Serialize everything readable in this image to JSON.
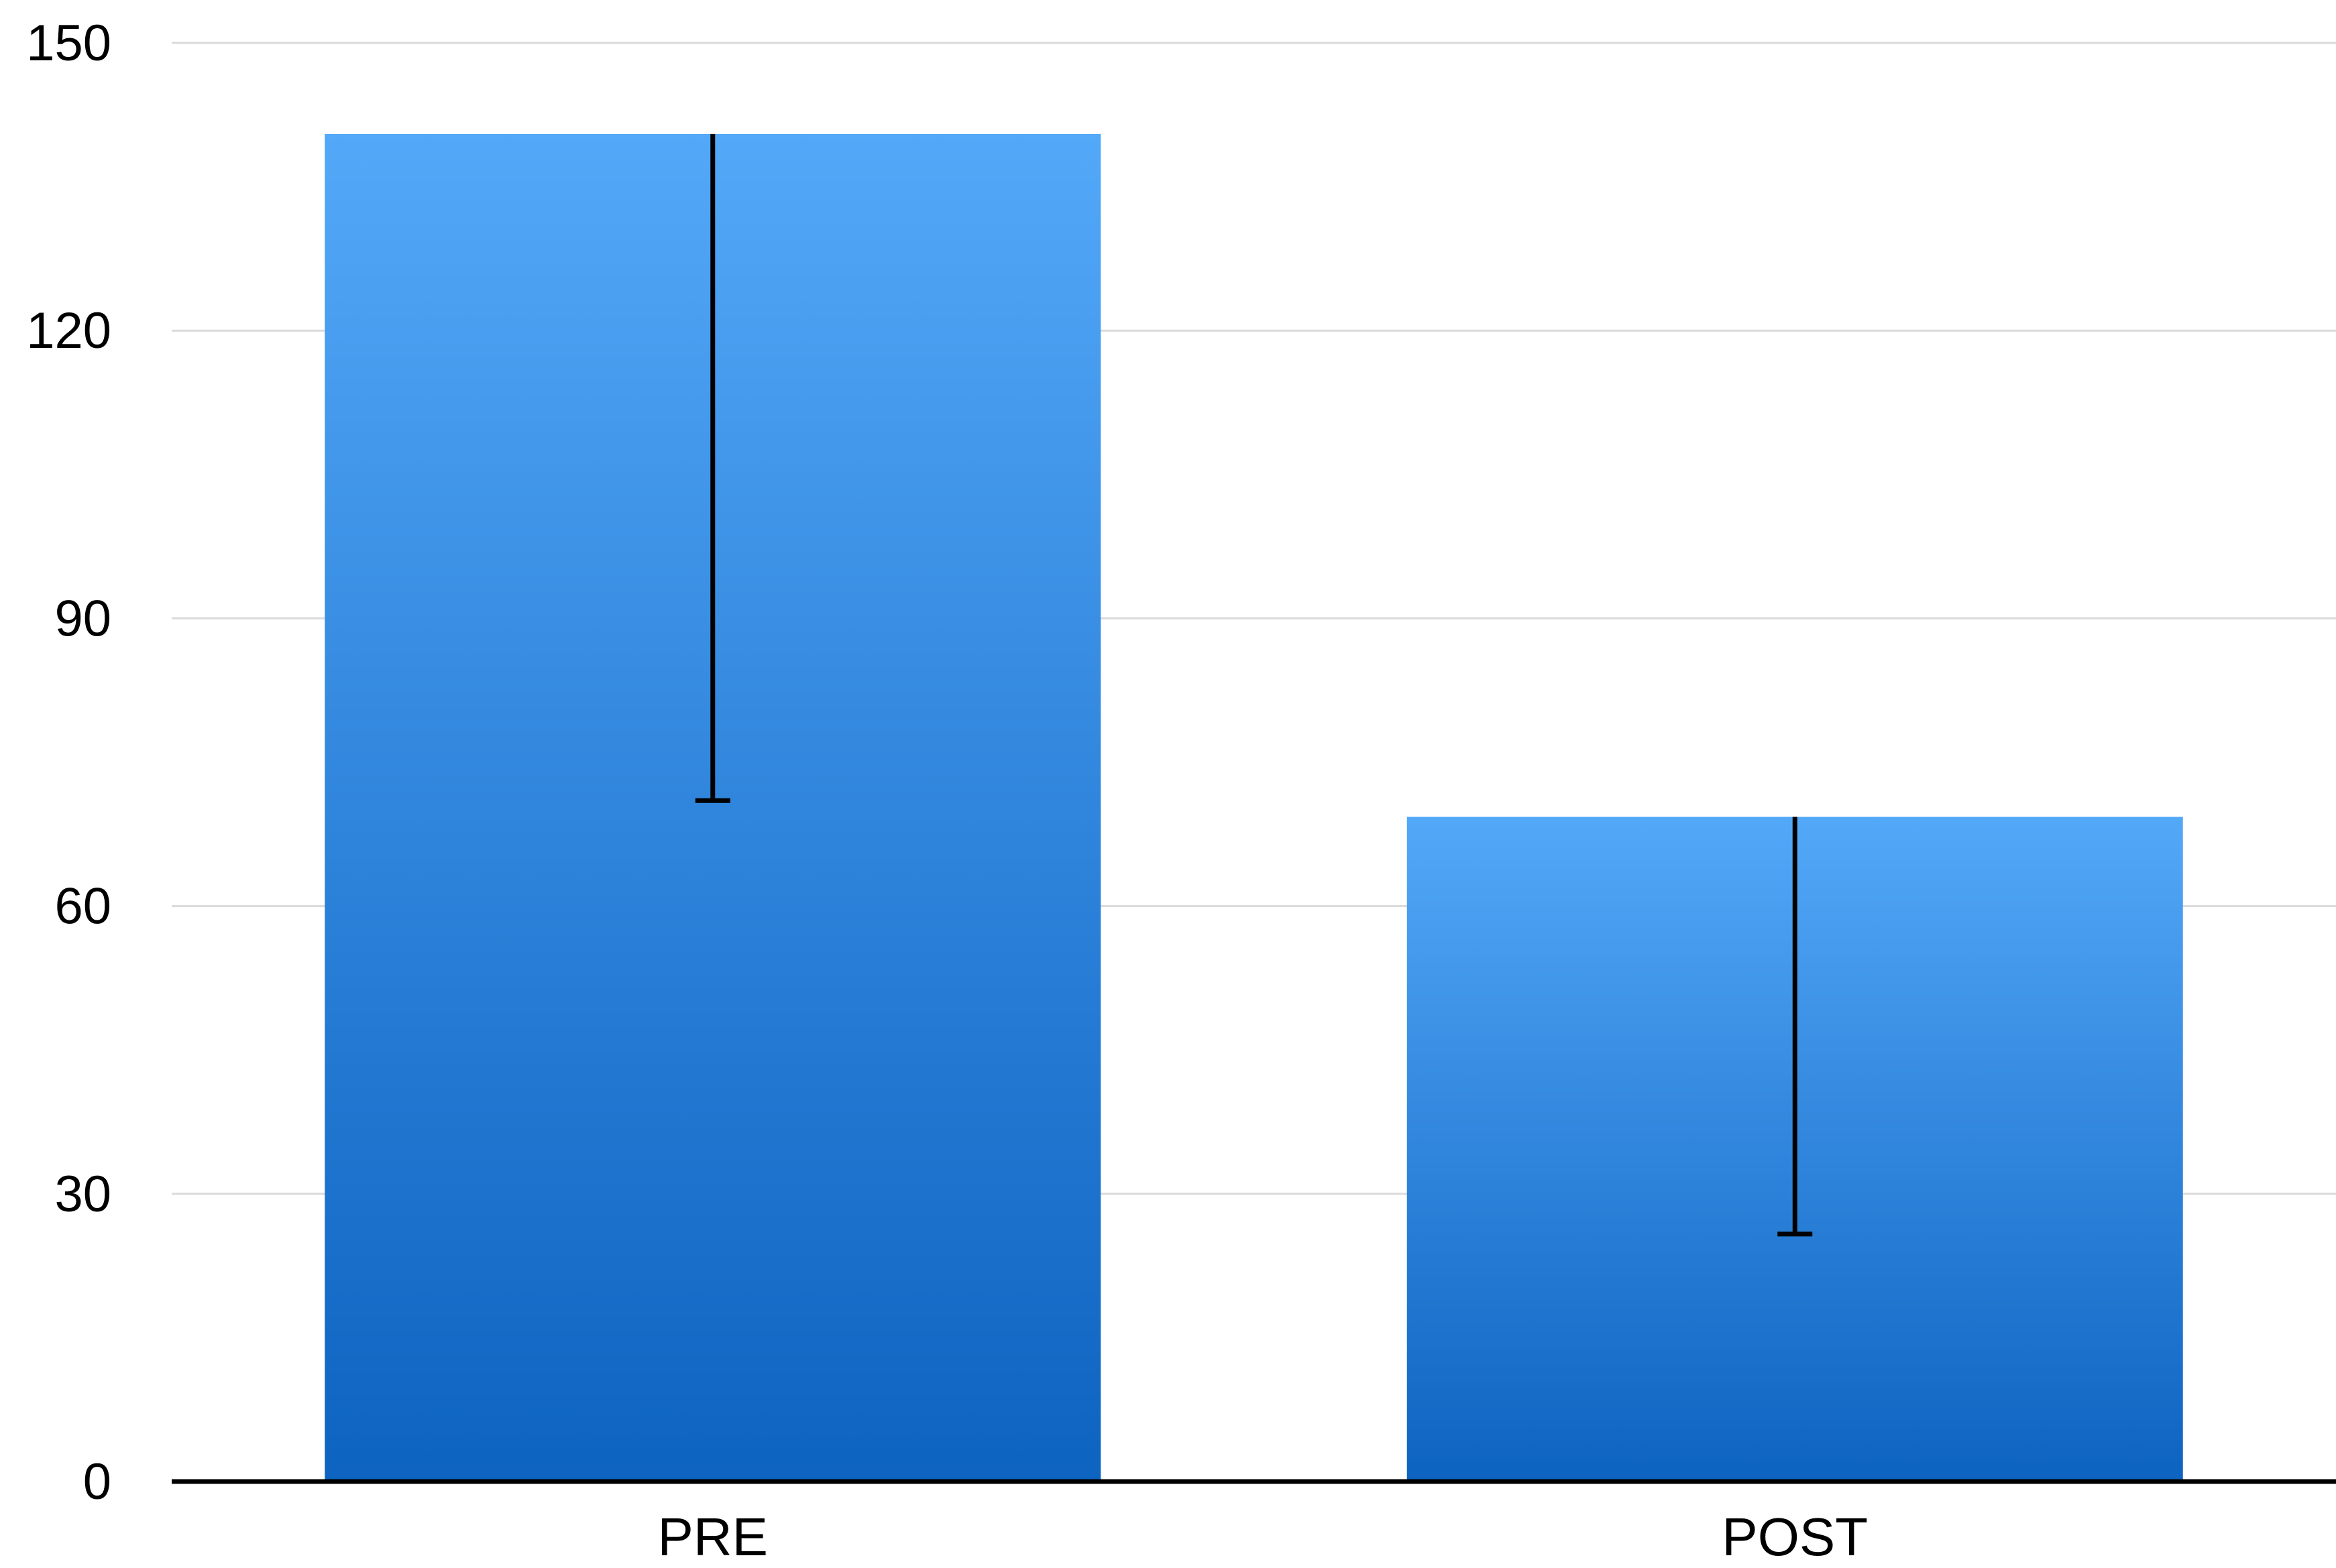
{
  "chart_data": {
    "type": "bar",
    "title": "",
    "xlabel": "",
    "ylabel": "",
    "categories": [
      "PRE",
      "POST"
    ],
    "values": [
      140.5,
      69.3
    ],
    "error_bars": [
      {
        "category": "PRE",
        "upper": 140.5,
        "lower": 71.0
      },
      {
        "category": "POST",
        "upper": 69.3,
        "lower": 25.8
      }
    ],
    "ylim": [
      0,
      150
    ],
    "yticks": [
      0,
      30,
      60,
      90,
      120,
      150
    ],
    "ytick_labels": [
      "0",
      "30",
      "60",
      "90",
      "120",
      "150"
    ],
    "grid": true,
    "legend": "none",
    "colors": {
      "bar_top": "#53A8F8",
      "bar_bottom": "#0D63C0",
      "grid": "#DADADA",
      "axis": "#000000",
      "error_bar": "#000000"
    }
  }
}
